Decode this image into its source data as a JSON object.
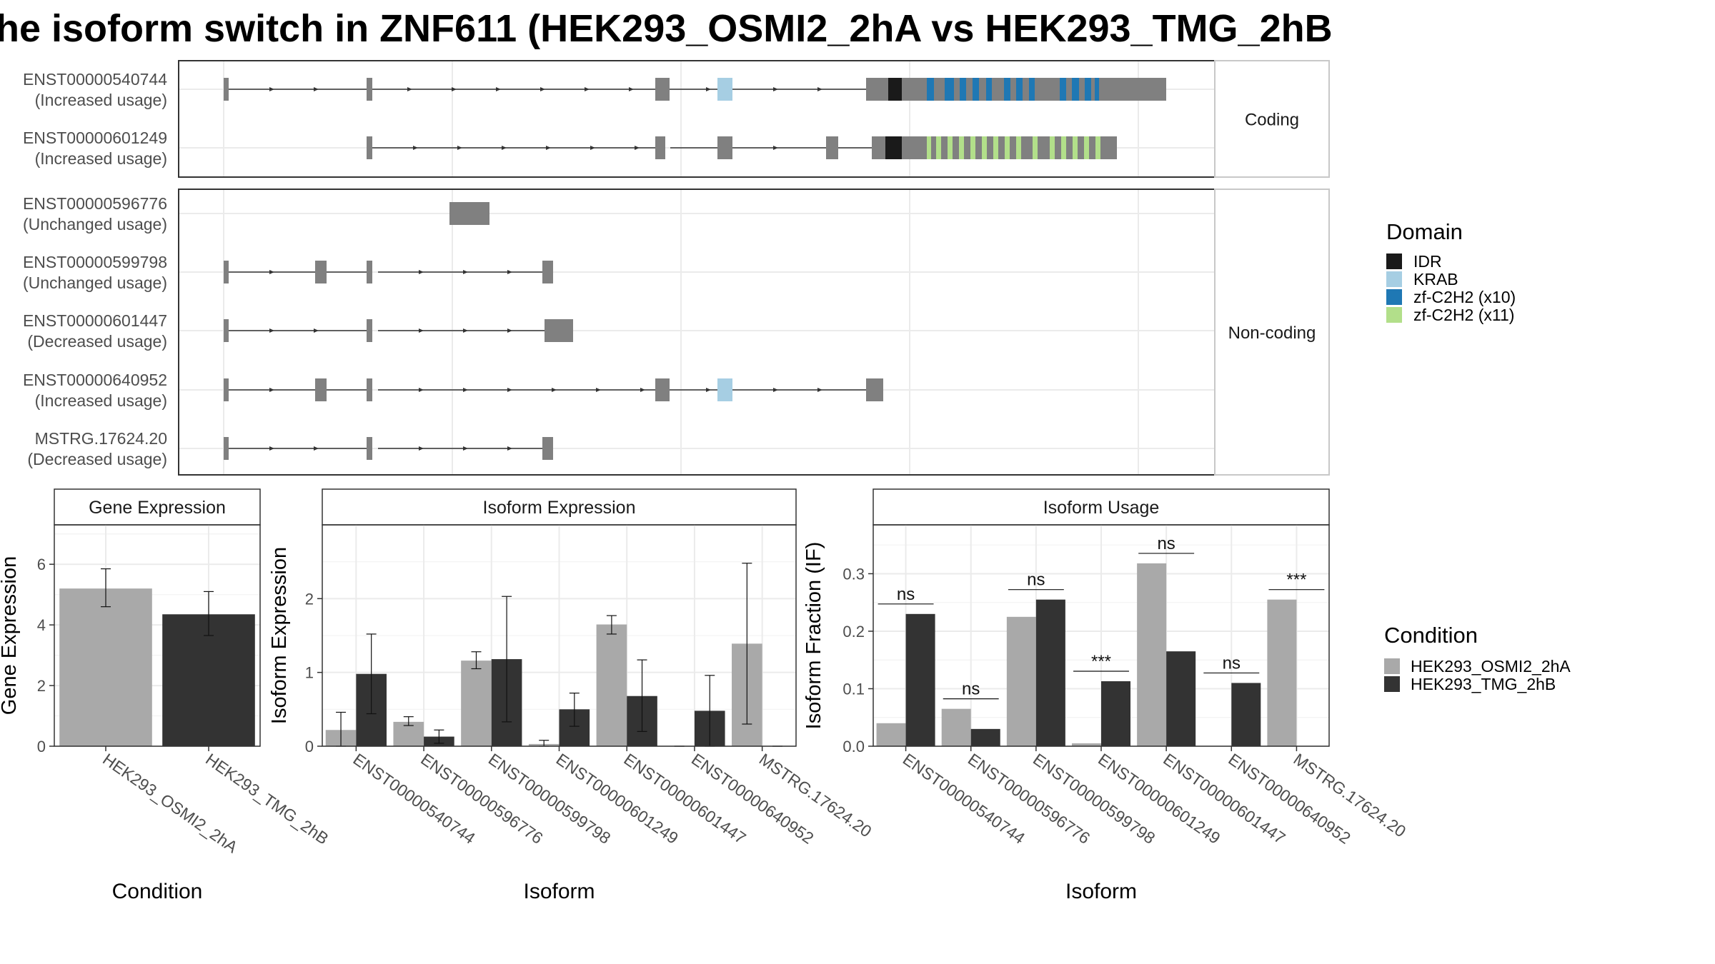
{
  "title": "he isoform switch in ZNF611 (HEK293_OSMI2_2hA vs HEK293_TMG_2hB",
  "structure": {
    "facets": [
      {
        "label": "Coding",
        "rows": [
          {
            "id": "ENST00000540744",
            "usage": "(Increased usage)"
          },
          {
            "id": "ENST00000601249",
            "usage": "(Increased usage)"
          }
        ]
      },
      {
        "label": "Non-coding",
        "rows": [
          {
            "id": "ENST00000596776",
            "usage": "(Unchanged usage)"
          },
          {
            "id": "ENST00000599798",
            "usage": "(Unchanged usage)"
          },
          {
            "id": "ENST00000601447",
            "usage": "(Decreased usage)"
          },
          {
            "id": "ENST00000640952",
            "usage": "(Increased usage)"
          },
          {
            "id": "MSTRG.17624.20",
            "usage": "(Decreased usage)"
          }
        ]
      }
    ]
  },
  "legend_domain": {
    "title": "Domain",
    "items": [
      {
        "label": "IDR",
        "color": "#1a1a1a"
      },
      {
        "label": "KRAB",
        "color": "#a6cee3"
      },
      {
        "label": "zf-C2H2 (x10)",
        "color": "#1f78b4"
      },
      {
        "label": "zf-C2H2 (x11)",
        "color": "#b2df8a"
      }
    ]
  },
  "legend_condition": {
    "title": "Condition",
    "items": [
      {
        "label": "HEK293_OSMI2_2hA",
        "color": "#a9a9a9"
      },
      {
        "label": "HEK293_TMG_2hB",
        "color": "#333333"
      }
    ]
  },
  "colors": {
    "exon": "#808080",
    "cond_a": "#a9a9a9",
    "cond_b": "#333333"
  },
  "chart_data": [
    {
      "type": "bar",
      "title": "Gene Expression",
      "xlabel": "Condition",
      "ylabel": "Gene Expression",
      "ylim": [
        0,
        7.3
      ],
      "yticks": [
        0,
        2,
        4,
        6
      ],
      "categories": [
        "HEK293_OSMI2_2hA",
        "HEK293_TMG_2hB"
      ],
      "values": [
        5.2,
        4.35
      ],
      "error_low": [
        4.6,
        3.65
      ],
      "error_high": [
        5.85,
        5.1
      ]
    },
    {
      "type": "bar",
      "title": "Isoform Expression",
      "xlabel": "Isoform",
      "ylabel": "Isoform Expression",
      "ylim": [
        0,
        3.0
      ],
      "yticks": [
        0,
        1,
        2
      ],
      "categories": [
        "ENST00000540744",
        "ENST00000596776",
        "ENST00000599798",
        "ENST00000601249",
        "ENST00000601447",
        "ENST00000640952",
        "MSTRG.17624.20"
      ],
      "series": [
        {
          "name": "HEK293_OSMI2_2hA",
          "values": [
            0.22,
            0.33,
            1.16,
            0.03,
            1.65,
            0.0,
            1.39
          ],
          "error_low": [
            0.0,
            0.28,
            1.05,
            0.0,
            1.52,
            0.0,
            0.3
          ],
          "error_high": [
            0.46,
            0.4,
            1.28,
            0.08,
            1.77,
            0.0,
            2.48
          ]
        },
        {
          "name": "HEK293_TMG_2hB",
          "values": [
            0.98,
            0.13,
            1.18,
            0.5,
            0.68,
            0.48,
            0.0
          ],
          "error_low": [
            0.44,
            0.04,
            0.33,
            0.27,
            0.2,
            0.0,
            0.0
          ],
          "error_high": [
            1.52,
            0.22,
            2.03,
            0.72,
            1.17,
            0.96,
            0.0
          ]
        }
      ]
    },
    {
      "type": "bar",
      "title": "Isoform Usage",
      "xlabel": "Isoform",
      "ylabel": "Isoform Fraction (IF)",
      "ylim": [
        0,
        0.385
      ],
      "yticks": [
        0.0,
        0.1,
        0.2,
        0.3
      ],
      "ytick_labels": [
        "0.0",
        "0.1",
        "0.2",
        "0.3"
      ],
      "categories": [
        "ENST00000540744",
        "ENST00000596776",
        "ENST00000599798",
        "ENST00000601249",
        "ENST00000601447",
        "ENST00000640952",
        "MSTRG.17624.20"
      ],
      "series": [
        {
          "name": "HEK293_OSMI2_2hA",
          "values": [
            0.04,
            0.065,
            0.225,
            0.005,
            0.318,
            0.0,
            0.255
          ]
        },
        {
          "name": "HEK293_TMG_2hB",
          "values": [
            0.23,
            0.03,
            0.255,
            0.113,
            0.165,
            0.11,
            0.0
          ]
        }
      ],
      "significance": [
        "ns",
        "ns",
        "ns",
        "***",
        "ns",
        "ns",
        "***"
      ]
    }
  ]
}
